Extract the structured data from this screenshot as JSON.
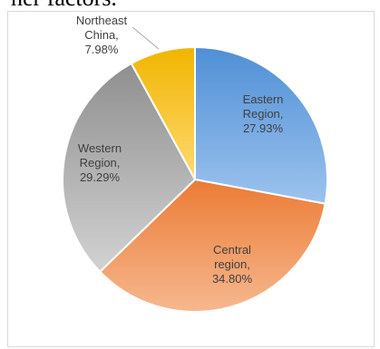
{
  "top_text": "her factors.",
  "chart_data": {
    "type": "pie",
    "title": "",
    "categories": [
      "Eastern Region",
      "Central region",
      "Western Region",
      "Northeast China"
    ],
    "values": [
      27.93,
      34.8,
      29.29,
      7.98
    ],
    "unit": "%",
    "labels": [
      [
        "Eastern",
        "Region,",
        "27.93%"
      ],
      [
        "Central",
        "region,",
        "34.80%"
      ],
      [
        "Western",
        "Region,",
        "29.29%"
      ],
      [
        "Northeast",
        "China,",
        "7.98%"
      ]
    ],
    "colors": [
      [
        "#4f8fd6",
        "#9dc3ee"
      ],
      [
        "#ec7b35",
        "#f6b88f"
      ],
      [
        "#8f8f8f",
        "#d2d2d2"
      ],
      [
        "#f1b500",
        "#ffd972"
      ]
    ],
    "start_angle_deg": 0,
    "direction": "clockwise",
    "legend": "none",
    "label_position": "inside, Northeast China outside with leader line"
  }
}
